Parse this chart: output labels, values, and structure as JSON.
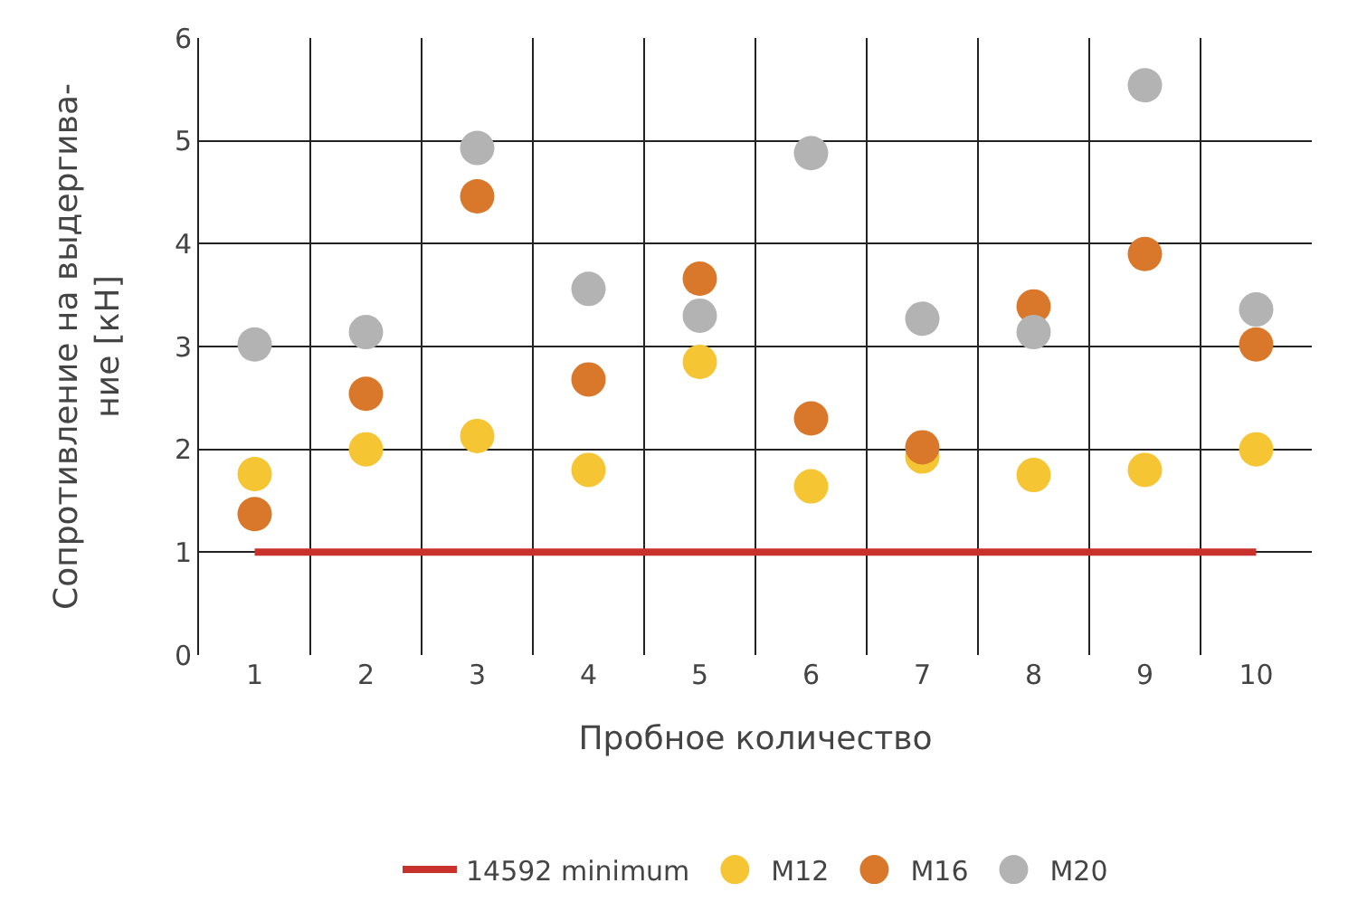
{
  "chart_data": {
    "type": "scatter",
    "xlabel": "Пробное количество",
    "ylabel": "Сопротивление на выдергива-\nние [кН]",
    "categories": [
      "1",
      "2",
      "3",
      "4",
      "5",
      "6",
      "7",
      "8",
      "9",
      "10"
    ],
    "ylim": [
      0,
      6
    ],
    "yticks": [
      0,
      1,
      2,
      3,
      4,
      5,
      6
    ],
    "grid": true,
    "legend": "bottom",
    "series": [
      {
        "name": "14592 minimum",
        "type": "line",
        "marker": "none",
        "color": "#c8312c",
        "values": [
          1,
          1,
          1,
          1,
          1,
          1,
          1,
          1,
          1,
          1
        ]
      },
      {
        "name": "M12",
        "marker": "circle",
        "color": "#f5c533",
        "values": [
          1.76,
          2.0,
          2.13,
          1.8,
          2.85,
          1.64,
          1.93,
          1.75,
          1.8,
          2.0
        ]
      },
      {
        "name": "M16",
        "marker": "circle",
        "color": "#d9782a",
        "values": [
          1.37,
          2.54,
          4.46,
          2.68,
          3.66,
          2.3,
          2.02,
          3.39,
          3.9,
          3.02
        ]
      },
      {
        "name": "M20",
        "marker": "circle",
        "color": "#b3b3b3",
        "values": [
          3.02,
          3.14,
          4.93,
          3.56,
          3.3,
          4.88,
          3.27,
          3.14,
          5.54,
          3.36
        ]
      }
    ]
  }
}
